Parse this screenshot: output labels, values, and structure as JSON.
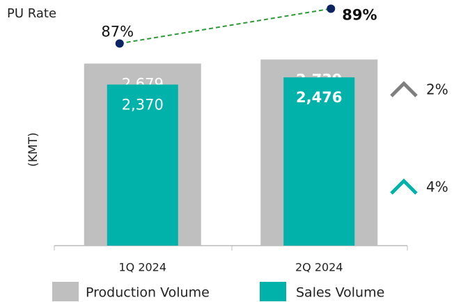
{
  "chart_data": {
    "type": "bar",
    "categories": [
      "1Q 2024",
      "2Q 2024"
    ],
    "y_label": "(KMT)",
    "ylim": [
      0,
      3000
    ],
    "series": [
      {
        "name": "Production Volume",
        "color": "#bfbfbf",
        "values": [
          2679,
          2739
        ],
        "value_labels": [
          "2,679",
          "2,739"
        ]
      },
      {
        "name": "Sales Volume",
        "color": "#00b2a9",
        "values": [
          2370,
          2476
        ],
        "value_labels": [
          "2,370",
          "2,476"
        ]
      }
    ],
    "line": {
      "name": "PU Rate",
      "type": "line",
      "axis": "y2",
      "color": "#2e9a38",
      "marker_color": "#0d2463",
      "values": [
        87,
        89
      ],
      "value_labels": [
        "87%",
        "89%"
      ]
    },
    "y2lim": [
      85.5,
      89.5
    ],
    "annotations": [
      {
        "text": "2%",
        "color": "#7f7f7f"
      },
      {
        "text": "4%",
        "color": "#00b2a9"
      }
    ]
  }
}
